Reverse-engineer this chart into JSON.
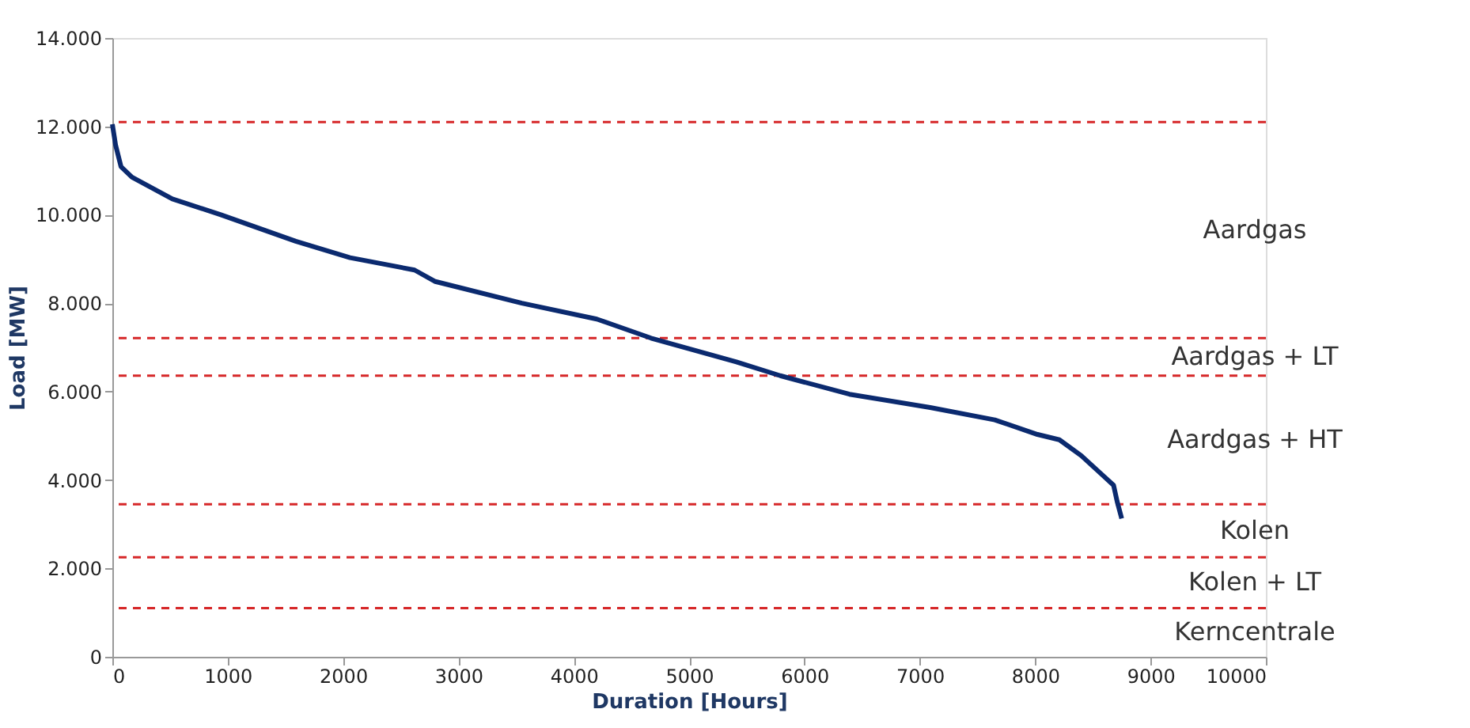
{
  "chart_data": {
    "type": "line",
    "xlabel": "Duration [Hours]",
    "ylabel": "Load [MW]",
    "x": [
      0,
      28,
      75,
      170,
      520,
      940,
      1590,
      2060,
      2620,
      2800,
      3550,
      4200,
      4670,
      5410,
      5790,
      6390,
      7090,
      7650,
      8020,
      8210,
      8400,
      8580,
      8680,
      8710,
      8750
    ],
    "series": [
      {
        "color": "#0b2a6f",
        "values": [
          12050,
          11580,
          11090,
          10850,
          10360,
          10000,
          9400,
          9030,
          8750,
          8490,
          8000,
          7640,
          7210,
          6670,
          6360,
          5940,
          5640,
          5360,
          5030,
          4910,
          4550,
          4120,
          3880,
          3520,
          3130
        ]
      }
    ],
    "xlim": [
      0,
      10000
    ],
    "xticks": [
      0,
      1000,
      2000,
      3000,
      4000,
      5000,
      6000,
      7000,
      8000,
      9000,
      10000
    ],
    "ylim": [
      0,
      14000
    ],
    "yticks": [
      0,
      {
        "value": 2000,
        "label": "2.000"
      },
      {
        "value": 4000,
        "label": "4.000"
      },
      {
        "value": 6000,
        "label": "6.000"
      },
      {
        "value": 8000,
        "label": "8.000"
      },
      {
        "value": 10000,
        "label": "10.000"
      },
      {
        "value": 12000,
        "label": "12.000"
      },
      {
        "value": 14000,
        "label": "14.000"
      }
    ],
    "ref_lines": [
      {
        "axis": "y",
        "value": 12100,
        "color": "#d62728",
        "line_style": "dashed"
      },
      {
        "axis": "y",
        "value": 7210,
        "color": "#d62728",
        "line_style": "dashed"
      },
      {
        "axis": "y",
        "value": 6360,
        "color": "#d62728",
        "line_style": "dashed"
      },
      {
        "axis": "y",
        "value": 3450,
        "color": "#d62728",
        "line_style": "dashed"
      },
      {
        "axis": "y",
        "value": 2250,
        "color": "#d62728",
        "line_style": "dashed"
      },
      {
        "axis": "y",
        "value": 1100,
        "color": "#d62728",
        "line_style": "dashed"
      }
    ],
    "annotations": [
      "Aardgas",
      "Aardgas + LT",
      "Aardgas + HT",
      "Kolen",
      "Kolen + LT",
      "Kerncentrale"
    ],
    "grid": false,
    "marker": "none",
    "line_style": "solid"
  }
}
